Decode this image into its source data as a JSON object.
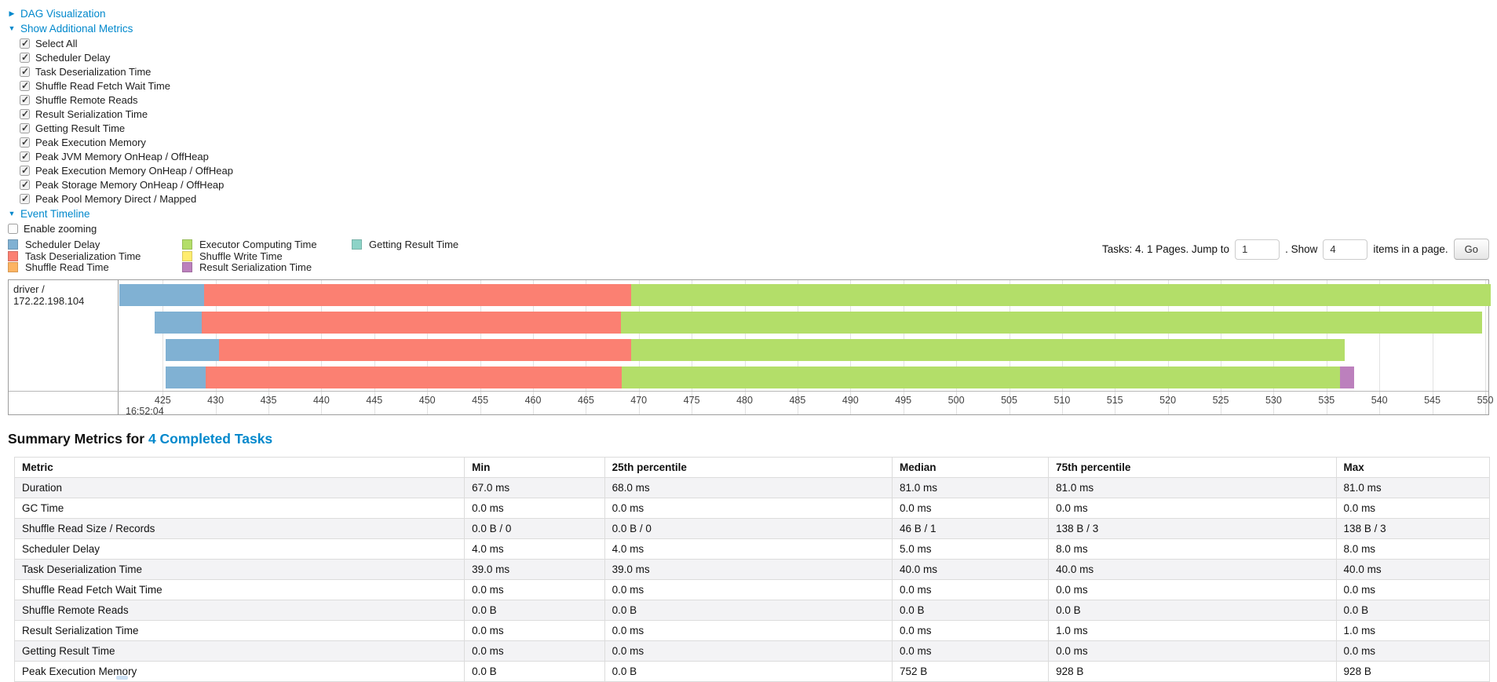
{
  "colors": {
    "link": "#0088cc"
  },
  "controls": {
    "dag_toggle": "DAG Visualization",
    "metrics_toggle": "Show Additional Metrics",
    "checkboxes": [
      {
        "label": "Select All",
        "checked": true
      },
      {
        "label": "Scheduler Delay",
        "checked": true
      },
      {
        "label": "Task Deserialization Time",
        "checked": true
      },
      {
        "label": "Shuffle Read Fetch Wait Time",
        "checked": true
      },
      {
        "label": "Shuffle Remote Reads",
        "checked": true
      },
      {
        "label": "Result Serialization Time",
        "checked": true
      },
      {
        "label": "Getting Result Time",
        "checked": true
      },
      {
        "label": "Peak Execution Memory",
        "checked": true
      },
      {
        "label": "Peak JVM Memory OnHeap / OffHeap",
        "checked": true
      },
      {
        "label": "Peak Execution Memory OnHeap / OffHeap",
        "checked": true
      },
      {
        "label": "Peak Storage Memory OnHeap / OffHeap",
        "checked": true
      },
      {
        "label": "Peak Pool Memory Direct / Mapped",
        "checked": true
      }
    ],
    "event_timeline_toggle": "Event Timeline",
    "enable_zooming": {
      "label": "Enable zooming",
      "checked": false
    }
  },
  "legend": {
    "columns": [
      [
        {
          "label": "Scheduler Delay",
          "color": "#80B1D3"
        },
        {
          "label": "Task Deserialization Time",
          "color": "#FB8072"
        },
        {
          "label": "Shuffle Read Time",
          "color": "#FDB462"
        }
      ],
      [
        {
          "label": "Executor Computing Time",
          "color": "#B3DE69"
        },
        {
          "label": "Shuffle Write Time",
          "color": "#FFED6F"
        },
        {
          "label": "Result Serialization Time",
          "color": "#BC80BD"
        }
      ],
      [
        {
          "label": "Getting Result Time",
          "color": "#8DD3C7"
        }
      ]
    ]
  },
  "pagination": {
    "tasks_text": "Tasks: 4. 1 Pages. Jump to",
    "jump_value": "1",
    "show_text": ". Show",
    "show_value": "4",
    "items_text": "items in a page.",
    "go_label": "Go"
  },
  "timeline": {
    "executor_label": "driver / 172.22.198.104",
    "axis": {
      "domain_min": 420.9,
      "domain_max": 550.3,
      "ticks": [
        425,
        430,
        435,
        440,
        445,
        450,
        455,
        460,
        465,
        470,
        475,
        480,
        485,
        490,
        495,
        500,
        505,
        510,
        515,
        520,
        525,
        530,
        535,
        540,
        545,
        550
      ],
      "time_label": "16:52:04"
    },
    "tasks": [
      {
        "segments": [
          {
            "name": "scheduler-delay",
            "color": "#80B1D3",
            "start": 420.9,
            "end": 428.9
          },
          {
            "name": "task-deserialization",
            "color": "#FB8072",
            "start": 428.9,
            "end": 469.3
          },
          {
            "name": "executor-computing",
            "color": "#B3DE69",
            "start": 469.3,
            "end": 550.5
          }
        ]
      },
      {
        "segments": [
          {
            "name": "scheduler-delay",
            "color": "#80B1D3",
            "start": 424.2,
            "end": 428.7
          },
          {
            "name": "task-deserialization",
            "color": "#FB8072",
            "start": 428.7,
            "end": 468.3
          },
          {
            "name": "executor-computing",
            "color": "#B3DE69",
            "start": 468.3,
            "end": 549.7
          }
        ]
      },
      {
        "segments": [
          {
            "name": "scheduler-delay",
            "color": "#80B1D3",
            "start": 425.3,
            "end": 430.3
          },
          {
            "name": "task-deserialization",
            "color": "#FB8072",
            "start": 430.3,
            "end": 469.3
          },
          {
            "name": "executor-computing",
            "color": "#B3DE69",
            "start": 469.3,
            "end": 536.7
          }
        ]
      },
      {
        "segments": [
          {
            "name": "scheduler-delay",
            "color": "#80B1D3",
            "start": 425.3,
            "end": 429.1
          },
          {
            "name": "task-deserialization",
            "color": "#FB8072",
            "start": 429.1,
            "end": 468.4
          },
          {
            "name": "executor-computing",
            "color": "#B3DE69",
            "start": 468.4,
            "end": 536.3
          },
          {
            "name": "result-serialization",
            "color": "#BC80BD",
            "start": 536.3,
            "end": 537.6
          }
        ]
      }
    ]
  },
  "summary": {
    "heading_prefix": "Summary Metrics for ",
    "heading_link": "4 Completed Tasks",
    "columns": [
      "Metric",
      "Min",
      "25th percentile",
      "Median",
      "75th percentile",
      "Max"
    ],
    "rows": [
      {
        "metric": "Duration",
        "values": [
          "67.0 ms",
          "68.0 ms",
          "81.0 ms",
          "81.0 ms",
          "81.0 ms"
        ]
      },
      {
        "metric": "GC Time",
        "values": [
          "0.0 ms",
          "0.0 ms",
          "0.0 ms",
          "0.0 ms",
          "0.0 ms"
        ]
      },
      {
        "metric": "Shuffle Read Size / Records",
        "values": [
          "0.0 B / 0",
          "0.0 B / 0",
          "46 B / 1",
          "138 B / 3",
          "138 B / 3"
        ]
      },
      {
        "metric": "Scheduler Delay",
        "values": [
          "4.0 ms",
          "4.0 ms",
          "5.0 ms",
          "8.0 ms",
          "8.0 ms"
        ]
      },
      {
        "metric": "Task Deserialization Time",
        "values": [
          "39.0 ms",
          "39.0 ms",
          "40.0 ms",
          "40.0 ms",
          "40.0 ms"
        ]
      },
      {
        "metric": "Shuffle Read Fetch Wait Time",
        "values": [
          "0.0 ms",
          "0.0 ms",
          "0.0 ms",
          "0.0 ms",
          "0.0 ms"
        ]
      },
      {
        "metric": "Shuffle Remote Reads",
        "values": [
          "0.0 B",
          "0.0 B",
          "0.0 B",
          "0.0 B",
          "0.0 B"
        ]
      },
      {
        "metric": "Result Serialization Time",
        "values": [
          "0.0 ms",
          "0.0 ms",
          "0.0 ms",
          "1.0 ms",
          "1.0 ms"
        ]
      },
      {
        "metric": "Getting Result Time",
        "values": [
          "0.0 ms",
          "0.0 ms",
          "0.0 ms",
          "0.0 ms",
          "0.0 ms"
        ]
      },
      {
        "metric": "Peak Execution Memory",
        "values": [
          "0.0 B",
          "0.0 B",
          "752 B",
          "928 B",
          "928 B"
        ]
      }
    ]
  }
}
